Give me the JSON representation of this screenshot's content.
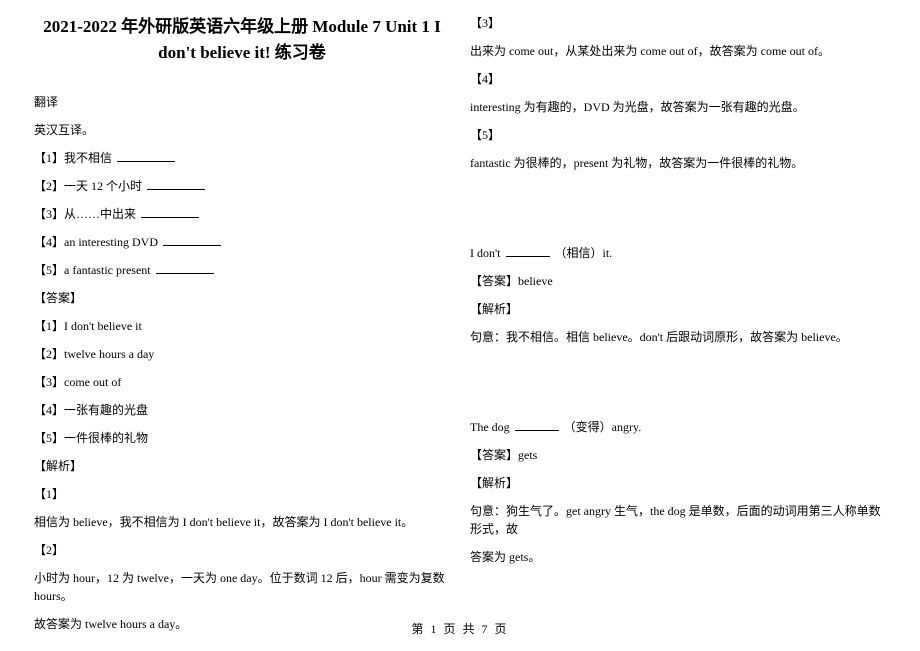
{
  "title": "2021-2022 年外研版英语六年级上册 Module 7 Unit 1 I don't believe it! 练习卷",
  "left": {
    "sec1": "翻译",
    "sec2": "英汉互译。",
    "q1": "【1】我不相信 ",
    "q2": "【2】一天 12 个小时 ",
    "q3": "【3】从……中出来 ",
    "q4": "【4】an interesting DVD ",
    "q5": "【5】a fantastic present ",
    "ansLabel": "【答案】",
    "a1": "【1】I don't believe it",
    "a2": "【2】twelve hours a day",
    "a3": "【3】come out of",
    "a4": "【4】一张有趣的光盘",
    "a5": "【5】一件很棒的礼物",
    "expLabel": "【解析】",
    "e1h": "【1】",
    "e1": "相信为 believe，我不相信为 I don't believe it，故答案为 I don't believe it。",
    "e2h": "【2】",
    "e2a": "小时为 hour，12 为 twelve，一天为 one day。位于数词 12 后，hour 需变为复数 hours。",
    "e2b": "故答案为 twelve hours a day。"
  },
  "right": {
    "e3h": "【3】",
    "e3": "出来为 come out，从某处出来为 come out of，故答案为 come out of。",
    "e4h": "【4】",
    "e4": "interesting 为有趣的，DVD 为光盘，故答案为一张有趣的光盘。",
    "e5h": "【5】",
    "e5": "fantastic 为很棒的，present 为礼物，故答案为一件很棒的礼物。",
    "q2a": "I don't ",
    "q2b": " （相信）it.",
    "ans2": "【答案】believe",
    "exp2Label": "【解析】",
    "exp2": "句意：我不相信。相信 believe。don't 后跟动词原形，故答案为 believe。",
    "q3a": "The dog ",
    "q3b": " （变得）angry.",
    "ans3": "【答案】gets",
    "exp3Label": "【解析】",
    "exp3a": "句意：狗生气了。get angry 生气，the dog 是单数，后面的动词用第三人称单数形式，故",
    "exp3b": "答案为 gets。"
  },
  "footer": "第 1 页 共 7 页"
}
